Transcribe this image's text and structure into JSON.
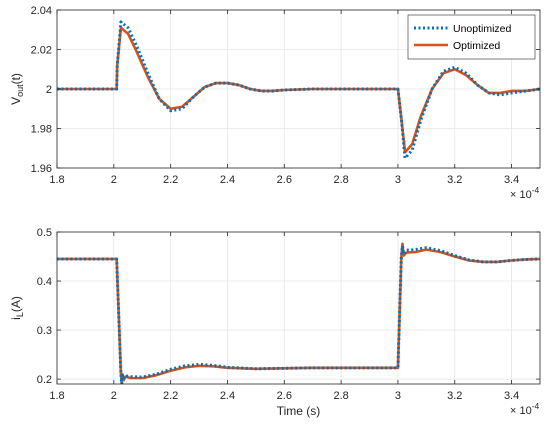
{
  "chart_data": [
    {
      "type": "line",
      "title": "",
      "xlabel": "",
      "ylabel": "V_out(t)",
      "ylabel_main": "V",
      "ylabel_sub": "out",
      "ylabel_tail": "(t)",
      "xlim": [
        0.00018,
        0.00035
      ],
      "ylim": [
        1.96,
        2.04
      ],
      "xticks": [
        0.00018,
        0.0002,
        0.00022,
        0.00024,
        0.00026,
        0.00028,
        0.0003,
        0.00032,
        0.00034
      ],
      "xtick_labels": [
        "1.8",
        "2",
        "2.2",
        "2.4",
        "2.6",
        "2.8",
        "3",
        "3.2",
        "3.4"
      ],
      "yticks": [
        1.96,
        1.98,
        2.0,
        2.02,
        2.04
      ],
      "ytick_labels": [
        "1.96",
        "1.98",
        "2",
        "2.02",
        "2.04"
      ],
      "x_multiplier_base": "× 10",
      "x_multiplier_exp": "-4",
      "grid": true,
      "legend": "top-right",
      "series": [
        {
          "name": "Unoptimized",
          "color": "#0072BD",
          "style": "dotted",
          "x": [
            0.00018,
            0.000201,
            0.0002012,
            0.0002025,
            0.000205,
            0.000208,
            0.000212,
            0.000216,
            0.00022,
            0.000224,
            0.000228,
            0.000232,
            0.000236,
            0.00024,
            0.000244,
            0.000248,
            0.000252,
            0.000256,
            0.00026,
            0.00027,
            0.00028,
            0.00029,
            0.0003,
            0.0003012,
            0.0003025,
            0.000305,
            0.000308,
            0.000312,
            0.000316,
            0.00032,
            0.000324,
            0.000328,
            0.000332,
            0.000336,
            0.00034,
            0.000345,
            0.00035
          ],
          "y": [
            2.0,
            2.0,
            2.012,
            2.034,
            2.031,
            2.022,
            2.008,
            1.995,
            1.989,
            1.99,
            1.996,
            2.001,
            2.003,
            2.003,
            2.002,
            2.0,
            1.999,
            1.999,
            1.9995,
            2.0,
            2.0,
            2.0,
            2.0,
            1.985,
            1.965,
            1.969,
            1.984,
            2.0,
            2.009,
            2.011,
            2.008,
            2.002,
            1.998,
            1.997,
            1.998,
            1.999,
            2.0
          ]
        },
        {
          "name": "Optimized",
          "color": "#D95319",
          "style": "solid",
          "x": [
            0.00018,
            0.000201,
            0.0002012,
            0.0002025,
            0.000205,
            0.000208,
            0.000212,
            0.000216,
            0.00022,
            0.000224,
            0.000228,
            0.000232,
            0.000236,
            0.00024,
            0.000244,
            0.000248,
            0.000252,
            0.000256,
            0.00026,
            0.00027,
            0.00028,
            0.00029,
            0.0003,
            0.0003012,
            0.0003025,
            0.000305,
            0.000308,
            0.000312,
            0.000316,
            0.00032,
            0.000324,
            0.000328,
            0.000332,
            0.000336,
            0.00034,
            0.000345,
            0.00035
          ],
          "y": [
            2.0,
            2.0,
            2.012,
            2.031,
            2.028,
            2.019,
            2.006,
            1.995,
            1.99,
            1.991,
            1.996,
            2.001,
            2.003,
            2.003,
            2.002,
            2.0,
            1.999,
            1.999,
            1.9995,
            2.0,
            2.0,
            2.0,
            2.0,
            1.985,
            1.968,
            1.972,
            1.986,
            2.0,
            2.008,
            2.01,
            2.007,
            2.002,
            1.998,
            1.998,
            1.999,
            1.999,
            2.0
          ]
        }
      ]
    },
    {
      "type": "line",
      "title": "",
      "xlabel": "Time (s)",
      "ylabel": "i_L(A)",
      "ylabel_main": "i",
      "ylabel_sub": "L",
      "ylabel_tail": "(A)",
      "xlim": [
        0.00018,
        0.00035
      ],
      "ylim": [
        0.19,
        0.5
      ],
      "xticks": [
        0.00018,
        0.0002,
        0.00022,
        0.00024,
        0.00026,
        0.00028,
        0.0003,
        0.00032,
        0.00034
      ],
      "xtick_labels": [
        "1.8",
        "2",
        "2.2",
        "2.4",
        "2.6",
        "2.8",
        "3",
        "3.2",
        "3.4"
      ],
      "yticks": [
        0.2,
        0.3,
        0.4,
        0.5
      ],
      "ytick_labels": [
        "0.2",
        "0.3",
        "0.4",
        "0.5"
      ],
      "x_multiplier_base": "× 10",
      "x_multiplier_exp": "-4",
      "grid": true,
      "legend": "none",
      "series": [
        {
          "name": "Unoptimized",
          "color": "#0072BD",
          "style": "dotted",
          "x": [
            0.00018,
            0.000201,
            0.0002025,
            0.0002028,
            0.000203,
            0.0002035,
            0.000204,
            0.000206,
            0.00021,
            0.000215,
            0.00022,
            0.000225,
            0.00023,
            0.000235,
            0.00024,
            0.00025,
            0.00026,
            0.00027,
            0.00028,
            0.00029,
            0.0003,
            0.0003012,
            0.0003016,
            0.000302,
            0.000303,
            0.000306,
            0.00031,
            0.000315,
            0.00032,
            0.000325,
            0.00033,
            0.000335,
            0.00034,
            0.000345,
            0.00035
          ],
          "y": [
            0.445,
            0.445,
            0.21,
            0.19,
            0.208,
            0.2,
            0.207,
            0.205,
            0.204,
            0.21,
            0.22,
            0.227,
            0.23,
            0.228,
            0.224,
            0.221,
            0.222,
            0.223,
            0.223,
            0.223,
            0.223,
            0.45,
            0.472,
            0.455,
            0.463,
            0.464,
            0.468,
            0.462,
            0.452,
            0.443,
            0.439,
            0.439,
            0.442,
            0.444,
            0.445
          ]
        },
        {
          "name": "Optimized",
          "color": "#D95319",
          "style": "solid",
          "x": [
            0.00018,
            0.000201,
            0.0002025,
            0.0002028,
            0.000203,
            0.0002035,
            0.000204,
            0.000206,
            0.00021,
            0.000215,
            0.00022,
            0.000225,
            0.00023,
            0.000235,
            0.00024,
            0.00025,
            0.00026,
            0.00027,
            0.00028,
            0.00029,
            0.0003,
            0.0003012,
            0.0003016,
            0.000302,
            0.000303,
            0.000306,
            0.00031,
            0.000315,
            0.00032,
            0.000325,
            0.00033,
            0.000335,
            0.00034,
            0.000345,
            0.00035
          ],
          "y": [
            0.445,
            0.445,
            0.21,
            0.19,
            0.21,
            0.198,
            0.205,
            0.202,
            0.202,
            0.208,
            0.217,
            0.224,
            0.227,
            0.226,
            0.223,
            0.221,
            0.222,
            0.223,
            0.223,
            0.223,
            0.223,
            0.45,
            0.476,
            0.452,
            0.458,
            0.459,
            0.464,
            0.459,
            0.45,
            0.442,
            0.439,
            0.439,
            0.442,
            0.444,
            0.445
          ]
        }
      ]
    }
  ]
}
